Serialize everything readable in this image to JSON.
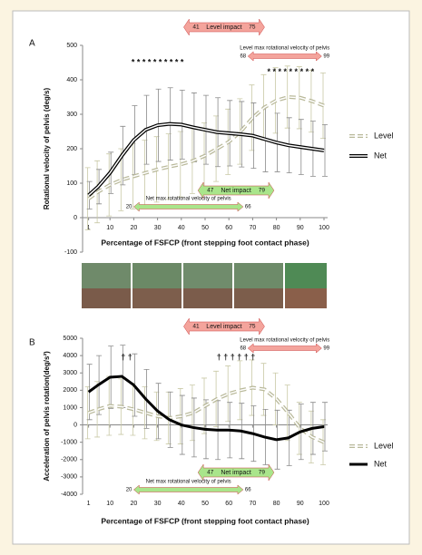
{
  "chart_data": [
    {
      "type": "line",
      "panel": "A",
      "ylabel": "Rotational velocity of pelvis (deg/s)",
      "xlabel": "Percentage of FSFCP (front stepping foot contact phase)",
      "x": [
        1,
        5,
        10,
        15,
        20,
        25,
        30,
        35,
        40,
        45,
        50,
        55,
        60,
        65,
        70,
        75,
        80,
        85,
        90,
        95,
        100
      ],
      "xlim": [
        0,
        100
      ],
      "xticks": [
        1,
        10,
        20,
        30,
        40,
        50,
        60,
        70,
        80,
        90,
        100
      ],
      "ylim": [
        -100,
        500
      ],
      "yticks": [
        -100,
        0,
        100,
        200,
        300,
        400,
        500
      ],
      "series": [
        {
          "name": "Level",
          "color": "#b9b99a",
          "dash": true,
          "double": true,
          "values": [
            55,
            75,
            95,
            110,
            120,
            130,
            140,
            148,
            155,
            165,
            180,
            200,
            220,
            250,
            290,
            320,
            340,
            350,
            348,
            338,
            325
          ],
          "errors": [
            90,
            90,
            90,
            90,
            95,
            95,
            95,
            95,
            95,
            95,
            95,
            95,
            95,
            95,
            95,
            95,
            95,
            90,
            90,
            90,
            95
          ]
        },
        {
          "name": "Net",
          "color": "#000000",
          "dash": false,
          "double": true,
          "values": [
            65,
            90,
            130,
            180,
            225,
            255,
            268,
            272,
            270,
            262,
            255,
            248,
            245,
            242,
            238,
            228,
            218,
            210,
            205,
            200,
            195
          ],
          "errors": [
            40,
            50,
            60,
            85,
            100,
            100,
            105,
            105,
            100,
            100,
            100,
            100,
            95,
            95,
            95,
            95,
            85,
            80,
            80,
            80,
            75
          ]
        }
      ],
      "marks": [
        {
          "text": "* * * * * * * * * *",
          "x": 30,
          "y": 450
        },
        {
          "text": "* * * * * * * * *",
          "x": 86,
          "y": 422
        }
      ],
      "ranges": [
        {
          "text": "Level impact",
          "start": 41,
          "end": 75,
          "color": "#f4a49c"
        },
        {
          "text": "Level max rotational velocity of pelvis",
          "start": 68,
          "end": 99,
          "color": "#f4a49c"
        },
        {
          "text": "Net impact",
          "start": 47,
          "end": 79,
          "color": "#a9e58b"
        },
        {
          "text": "Net max rotational velocity of pelvis",
          "start": 20,
          "end": 66,
          "color": "#a9e58b"
        }
      ]
    },
    {
      "type": "line",
      "panel": "B",
      "ylabel": "Acceleration of pelvis rotation(deg/s²)",
      "xlabel": "Percentage of FSFCP (front stepping foot contact phase)",
      "x": [
        1,
        5,
        10,
        15,
        20,
        25,
        30,
        35,
        40,
        45,
        50,
        55,
        60,
        65,
        70,
        75,
        80,
        85,
        90,
        95,
        100
      ],
      "xlim": [
        0,
        100
      ],
      "xticks": [
        1,
        10,
        20,
        30,
        40,
        50,
        60,
        70,
        80,
        90,
        100
      ],
      "ylim": [
        -4000,
        5000
      ],
      "yticks": [
        -4000,
        -3000,
        -2000,
        -1000,
        0,
        1000,
        2000,
        3000,
        4000,
        5000
      ],
      "series": [
        {
          "name": "Level",
          "color": "#b9b99a",
          "dash": true,
          "double": true,
          "values": [
            700,
            900,
            1100,
            1050,
            900,
            700,
            500,
            400,
            500,
            700,
            1100,
            1500,
            1800,
            2000,
            2150,
            2050,
            1500,
            700,
            -200,
            -700,
            -1000
          ],
          "errors": [
            1500,
            1600,
            1700,
            1600,
            1500,
            1500,
            1400,
            1500,
            1600,
            1600,
            1600,
            1600,
            1600,
            1700,
            1600,
            1500,
            1500,
            1600,
            1500,
            1500,
            1300
          ]
        },
        {
          "name": "Net",
          "color": "#000000",
          "dash": false,
          "double": false,
          "values": [
            1900,
            2300,
            2750,
            2800,
            2300,
            1500,
            800,
            300,
            0,
            -150,
            -250,
            -300,
            -300,
            -350,
            -500,
            -700,
            -850,
            -750,
            -400,
            -200,
            -100
          ],
          "errors": [
            1600,
            1700,
            1800,
            1800,
            1800,
            1700,
            1600,
            1600,
            1700,
            1700,
            1700,
            1700,
            1600,
            1600,
            1600,
            1600,
            1700,
            1600,
            1600,
            1500,
            1400
          ]
        }
      ],
      "marks": [
        {
          "text": "† †",
          "x": 17,
          "y": 3900
        },
        {
          "text": "† † † † † †",
          "x": 63,
          "y": 3900
        }
      ],
      "ranges": [
        {
          "text": "Level impact",
          "start": 41,
          "end": 75,
          "color": "#f4a49c"
        },
        {
          "text": "Level max rotational velocity of pelvis",
          "start": 68,
          "end": 99,
          "color": "#f4a49c"
        },
        {
          "text": "Net impact",
          "start": 47,
          "end": 79,
          "color": "#a9e58b"
        },
        {
          "text": "Net max rotational velocity of pelvis",
          "start": 20,
          "end": 66,
          "color": "#a9e58b"
        }
      ]
    }
  ]
}
